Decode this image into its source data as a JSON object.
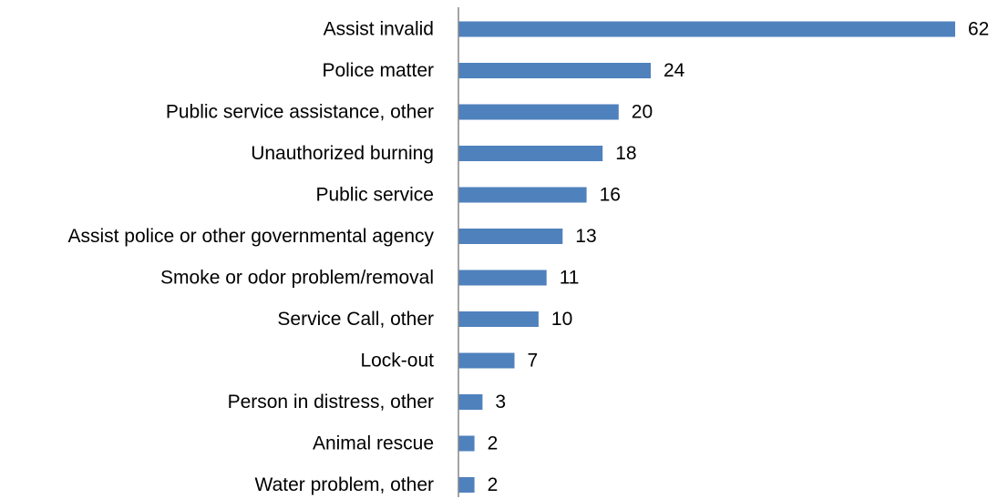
{
  "chart_data": {
    "type": "bar",
    "orientation": "horizontal",
    "categories": [
      "Assist invalid",
      "Police matter",
      "Public service assistance, other",
      "Unauthorized burning",
      "Public service",
      "Assist police or other governmental agency",
      "Smoke or odor problem/removal",
      "Service Call, other",
      "Lock-out",
      "Person in distress, other",
      "Animal rescue",
      "Water problem, other"
    ],
    "values": [
      62,
      24,
      20,
      18,
      16,
      13,
      11,
      10,
      7,
      3,
      2,
      2
    ],
    "value_labels": [
      "62",
      "24",
      "20",
      "18",
      "16",
      "13",
      "11",
      "10",
      "7",
      "3",
      "2",
      "2"
    ],
    "xlim": [
      0,
      62
    ],
    "title": "",
    "xlabel": "",
    "ylabel": "",
    "grid": false,
    "legend": "none",
    "bar_color": "#4F81BD",
    "axis_color": "#868686"
  }
}
